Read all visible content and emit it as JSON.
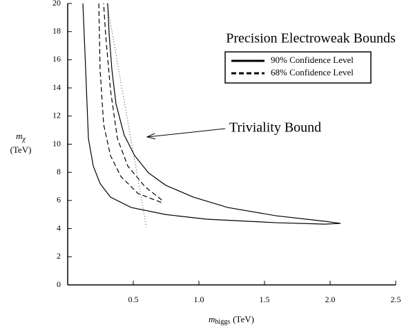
{
  "chart_data": {
    "type": "line",
    "title": "Precision Electroweak Bounds",
    "xlabel": {
      "symbol": "m",
      "subscript": "higgs",
      "unit": "(TeV)"
    },
    "ylabel": {
      "symbol": "m",
      "subscript": "χ",
      "unit": "(TeV)"
    },
    "xlim": [
      0,
      2.5
    ],
    "ylim": [
      0,
      20
    ],
    "xticks": [
      0.5,
      {
        "value": 1,
        "label": "1.0"
      },
      1.5,
      {
        "value": 2,
        "label": "2.0"
      },
      2.5
    ],
    "yticks": [
      0,
      2,
      4,
      6,
      8,
      10,
      12,
      14,
      16,
      18,
      20
    ],
    "series": [
      {
        "name": "90% Confidence Level",
        "color": "#000000",
        "style": "solid",
        "x": [
          0.116,
          0.137,
          0.158,
          0.195,
          0.247,
          0.326,
          0.484,
          0.747,
          1.06,
          1.59,
          1.96,
          2.08,
          1.96,
          1.59,
          1.22,
          0.958,
          0.747,
          0.616,
          0.51,
          0.43,
          0.368,
          0.337,
          0.316,
          0.305
        ],
        "y": [
          20,
          15.3,
          10.4,
          8.45,
          7.2,
          6.24,
          5.5,
          5.0,
          4.67,
          4.42,
          4.32,
          4.37,
          4.52,
          4.91,
          5.5,
          6.24,
          7.08,
          7.96,
          9.19,
          10.66,
          12.87,
          15.3,
          17.8,
          20
        ]
      },
      {
        "name": "68% Confidence Level",
        "color": "#000000",
        "style": "dashed",
        "x": [
          0.237,
          0.247,
          0.274,
          0.326,
          0.405,
          0.537,
          0.716,
          0.716,
          0.589,
          0.458,
          0.379,
          0.326,
          0.289,
          0.274
        ],
        "y": [
          20,
          15.3,
          11.4,
          9.19,
          7.71,
          6.49,
          5.85,
          6.04,
          6.98,
          8.45,
          10.4,
          13.86,
          17.8,
          20
        ]
      }
    ],
    "triviality": {
      "label": "Triviality Bound",
      "x": [
        0.3,
        0.6
      ],
      "y": [
        20,
        4.1
      ]
    }
  }
}
